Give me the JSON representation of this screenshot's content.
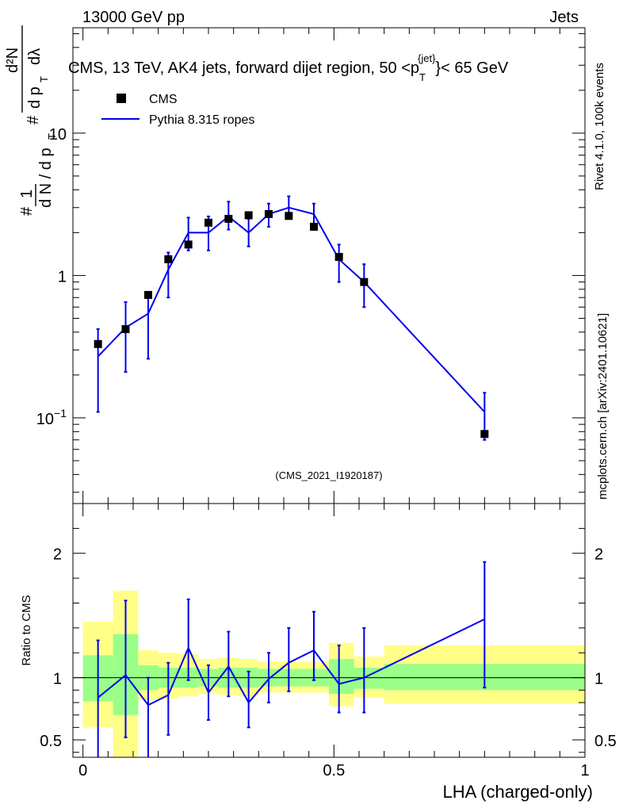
{
  "header": {
    "left": "13000 GeV pp",
    "right": "Jets",
    "rivet": "Rivet 4.1.0,  100k events",
    "mcplots": "mcplots.cern.ch [arXiv:2401.10621]"
  },
  "chart_data": [
    {
      "type": "scatter",
      "title_main": "CMS, 13 TeV, AK4 jets, forward dijet region, 50 <p",
      "title_sub": "T",
      "title_sup": "{jet}",
      "title_end": "}< 65 GeV",
      "watermark": "(CMS_2021_I1920187)",
      "ylabel": "# 1/(d N / d p_T)  # d²N/(d p_T d λ)",
      "ylabel_parts": {
        "y_hash": "#",
        "y_one": "1",
        "y_dN": "d N / d p",
        "y_dN_sub": "T",
        "y_hash2": "#",
        "y_d2N": "d²N",
        "y_dpT": "d p",
        "y_dpT_sub": "T",
        "y_dl": "dλ"
      },
      "yscale": "log",
      "ylim": [
        0.025,
        55
      ],
      "xlim": [
        -0.02,
        1.0
      ],
      "yticks": [
        {
          "v": 0.1,
          "base": "10",
          "sup": "−1"
        },
        {
          "v": 1,
          "label": "1"
        },
        {
          "v": 10,
          "label": "10"
        }
      ],
      "legend": [
        {
          "name": "CMS",
          "marker": "square",
          "color": "#000000"
        },
        {
          "name": "Pythia 8.315 ropes",
          "marker": "line",
          "color": "#0000ee"
        }
      ],
      "cms": {
        "x": [
          0.03,
          0.085,
          0.13,
          0.17,
          0.21,
          0.25,
          0.29,
          0.33,
          0.37,
          0.41,
          0.46,
          0.51,
          0.56,
          0.8
        ],
        "y": [
          0.33,
          0.42,
          0.73,
          1.3,
          1.65,
          2.35,
          2.5,
          2.65,
          2.7,
          2.62,
          2.2,
          1.35,
          0.9,
          0.077
        ],
        "xlo": [
          0.0,
          0.06,
          0.11,
          0.15,
          0.19,
          0.23,
          0.27,
          0.31,
          0.35,
          0.39,
          0.44,
          0.49,
          0.54,
          0.6
        ],
        "xhi": [
          0.06,
          0.11,
          0.15,
          0.19,
          0.23,
          0.27,
          0.31,
          0.35,
          0.39,
          0.44,
          0.49,
          0.54,
          0.6,
          1.0
        ]
      },
      "mc": {
        "x": [
          0.03,
          0.085,
          0.13,
          0.17,
          0.21,
          0.25,
          0.29,
          0.33,
          0.37,
          0.41,
          0.46,
          0.51,
          0.56,
          0.8
        ],
        "y": [
          0.27,
          0.43,
          0.54,
          1.1,
          2.0,
          2.0,
          2.6,
          2.0,
          2.7,
          3.0,
          2.7,
          1.3,
          0.9,
          0.11
        ],
        "ylo": [
          0.11,
          0.21,
          0.26,
          0.7,
          1.5,
          1.5,
          2.1,
          1.6,
          2.2,
          2.5,
          2.2,
          0.9,
          0.6,
          0.07
        ],
        "yhi": [
          0.42,
          0.65,
          0.75,
          1.45,
          2.55,
          2.6,
          3.3,
          2.5,
          3.2,
          3.6,
          3.2,
          1.65,
          1.2,
          0.15
        ]
      }
    },
    {
      "type": "line",
      "ylabel": "Ratio to CMS",
      "xlabel": "LHA (charged-only)",
      "ylim": [
        0.36,
        2.4
      ],
      "xlim": [
        -0.02,
        1.0
      ],
      "xticks": [
        {
          "v": 0,
          "label": "0"
        },
        {
          "v": 0.5,
          "label": "0.5"
        },
        {
          "v": 1,
          "label": "1"
        }
      ],
      "yticks": [
        {
          "v": 0.5,
          "label": "0.5"
        },
        {
          "v": 1,
          "label": "1"
        },
        {
          "v": 2,
          "label": "2"
        }
      ],
      "bands": [
        {
          "xlo": 0.0,
          "xhi": 0.06,
          "g": [
            0.81,
            1.18
          ],
          "y": [
            0.6,
            1.45
          ]
        },
        {
          "xlo": 0.06,
          "xhi": 0.11,
          "g": [
            0.7,
            1.35
          ],
          "y": 0.36
        },
        {
          "xlo": 0.11,
          "xhi": 0.15,
          "g": [
            0.9,
            1.1
          ],
          "y": [
            0.82,
            1.22
          ]
        },
        {
          "xlo": 0.15,
          "xhi": 0.19,
          "g": [
            0.92,
            1.08
          ],
          "y": [
            0.83,
            1.2
          ]
        },
        {
          "xlo": 0.19,
          "xhi": 0.23,
          "g": [
            0.92,
            1.08
          ],
          "y": [
            0.85,
            1.19
          ]
        },
        {
          "xlo": 0.23,
          "xhi": 0.27,
          "g": [
            0.93,
            1.07
          ],
          "y": [
            0.87,
            1.15
          ]
        },
        {
          "xlo": 0.27,
          "xhi": 0.31,
          "g": [
            0.92,
            1.08
          ],
          "y": [
            0.86,
            1.16
          ]
        },
        {
          "xlo": 0.31,
          "xhi": 0.35,
          "g": [
            0.92,
            1.08
          ],
          "y": [
            0.85,
            1.15
          ]
        },
        {
          "xlo": 0.35,
          "xhi": 0.39,
          "g": [
            0.93,
            1.07
          ],
          "y": [
            0.88,
            1.13
          ]
        },
        {
          "xlo": 0.39,
          "xhi": 0.44,
          "g": [
            0.93,
            1.07
          ],
          "y": [
            0.88,
            1.13
          ]
        },
        {
          "xlo": 0.44,
          "xhi": 0.49,
          "g": [
            0.93,
            1.07
          ],
          "y": [
            0.88,
            1.13
          ]
        },
        {
          "xlo": 0.49,
          "xhi": 0.54,
          "g": [
            0.87,
            1.15
          ],
          "y": [
            0.77,
            1.28
          ]
        },
        {
          "xlo": 0.54,
          "xhi": 0.6,
          "g": [
            0.91,
            1.08
          ],
          "y": [
            0.84,
            1.17
          ]
        },
        {
          "xlo": 0.6,
          "xhi": 1.0,
          "g": [
            0.9,
            1.11
          ],
          "y": [
            0.79,
            1.26
          ]
        }
      ],
      "series_x": [
        0.03,
        0.085,
        0.13,
        0.17,
        0.21,
        0.25,
        0.29,
        0.33,
        0.37,
        0.41,
        0.46,
        0.51,
        0.56,
        0.8
      ],
      "series_y": [
        0.84,
        1.02,
        0.78,
        0.86,
        1.24,
        0.88,
        1.09,
        0.8,
        0.99,
        1.12,
        1.22,
        0.95,
        1.0,
        1.47
      ],
      "series_ylo": [
        0.36,
        0.52,
        0.36,
        0.54,
        0.98,
        0.66,
        0.85,
        0.6,
        0.8,
        0.89,
        0.98,
        0.72,
        0.72,
        0.92
      ],
      "series_yhi": [
        1.3,
        1.62,
        1.0,
        1.12,
        1.63,
        1.1,
        1.37,
        1.05,
        1.2,
        1.4,
        1.53,
        1.26,
        1.4,
        1.93
      ]
    }
  ]
}
